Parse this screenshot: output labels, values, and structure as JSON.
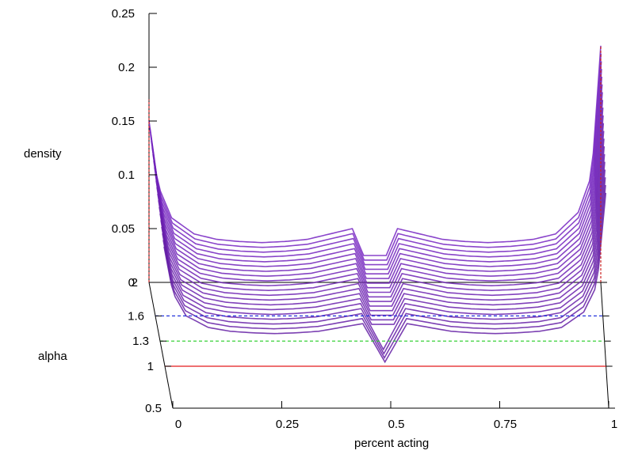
{
  "chart_data": {
    "type": "surface",
    "xlabel": "percent acting",
    "ylabel": "alpha",
    "zlabel": "density",
    "x_ticks": [
      "0",
      "0.25",
      "0.5",
      "0.75",
      "1"
    ],
    "y_ticks": [
      "0.5",
      "1",
      "1.3",
      "1.6",
      "2"
    ],
    "z_ticks": [
      "0",
      "0.05",
      "0.1",
      "0.15",
      "0.2",
      "0.25"
    ],
    "xlim": [
      0,
      1
    ],
    "ylim": [
      0.5,
      2
    ],
    "zlim": [
      0,
      0.25
    ],
    "reference_lines": [
      {
        "alpha": 1.0,
        "color": "#e41a1c",
        "style": "solid"
      },
      {
        "alpha": 1.3,
        "color": "#22cc22",
        "style": "dashed"
      },
      {
        "alpha": 1.6,
        "color": "#2233dd",
        "style": "dashed"
      }
    ],
    "surface": {
      "color_low": "#000000",
      "color_high": "#9b30ff",
      "profile_samples": {
        "x": [
          0.0,
          0.02,
          0.05,
          0.1,
          0.15,
          0.2,
          0.25,
          0.3,
          0.35,
          0.4,
          0.45,
          0.5,
          0.55,
          0.6,
          0.65,
          0.7,
          0.75,
          0.8,
          0.85,
          0.9,
          0.95,
          0.98,
          1.0
        ],
        "density_at_alpha_2": [
          0.15,
          0.09,
          0.06,
          0.045,
          0.04,
          0.038,
          0.037,
          0.038,
          0.04,
          0.045,
          0.05,
          0.0,
          0.05,
          0.045,
          0.04,
          0.038,
          0.037,
          0.038,
          0.04,
          0.045,
          0.065,
          0.1,
          0.22
        ]
      }
    },
    "peaks": [
      {
        "x": 0.0,
        "density": 0.17
      },
      {
        "x": 1.0,
        "density": 0.22
      }
    ]
  }
}
